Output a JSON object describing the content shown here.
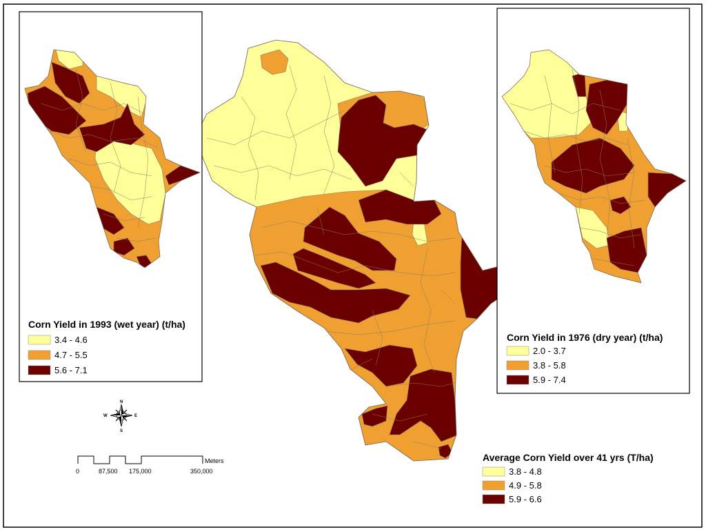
{
  "colors": {
    "low": "#ffff99",
    "mid": "#f0a030",
    "high": "#6b0000",
    "frame": "#000000"
  },
  "maps": {
    "wet": {
      "legend_title": "Corn Yield in 1993 (wet year) (t/ha)",
      "classes": [
        "3.4 - 4.6",
        "4.7 - 5.5",
        "5.6 - 7.1"
      ]
    },
    "dry": {
      "legend_title": "Corn Yield in 1976 (dry year) (t/ha)",
      "classes": [
        "2.0 - 3.7",
        "3.8 - 5.8",
        "5.9 - 7.4"
      ]
    },
    "average": {
      "legend_title": "Average Corn Yield over 41 yrs (T/ha)",
      "classes": [
        "3.8 - 4.8",
        "4.9 - 5.8",
        "5.9 - 6.6"
      ]
    }
  },
  "compass": {
    "n": "N",
    "s": "S",
    "e": "E",
    "w": "W"
  },
  "scalebar": {
    "unit": "Meters",
    "ticks": [
      "0",
      "87,500",
      "175,000",
      "350,000"
    ]
  }
}
